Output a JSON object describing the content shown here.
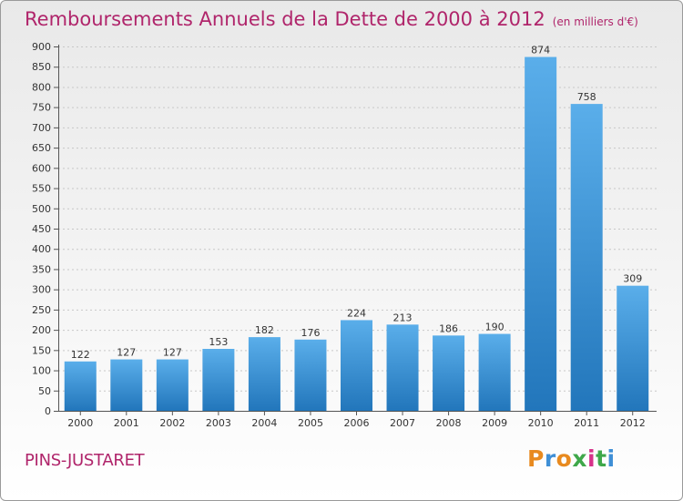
{
  "title": "Remboursements Annuels de la Dette de 2000 à 2012",
  "unit_label": "(en milliers d'€)",
  "location": "PINS-JUSTARET",
  "logo": {
    "text": "Proxiti",
    "letter_colors": [
      "#e88a1f",
      "#3f8fd6",
      "#e88a1f",
      "#3fa84a",
      "#d6338a",
      "#3fa84a",
      "#3f8fd6"
    ]
  },
  "colors": {
    "bar_top": "#5aaeea",
    "bar_bottom": "#2276bb",
    "accent": "#b0256b"
  },
  "chart_data": {
    "type": "bar",
    "title": "Remboursements Annuels de la Dette de 2000 à 2012",
    "xlabel": "",
    "ylabel": "(en milliers d'€)",
    "categories": [
      "2000",
      "2001",
      "2002",
      "2003",
      "2004",
      "2005",
      "2006",
      "2007",
      "2008",
      "2009",
      "2010",
      "2011",
      "2012"
    ],
    "values": [
      122,
      127,
      127,
      153,
      182,
      176,
      224,
      213,
      186,
      190,
      874,
      758,
      309
    ],
    "ylim": [
      0,
      900
    ],
    "yticks": [
      0,
      50,
      100,
      150,
      200,
      250,
      300,
      350,
      400,
      450,
      500,
      550,
      600,
      650,
      700,
      750,
      800,
      850,
      900
    ],
    "grid": true
  }
}
